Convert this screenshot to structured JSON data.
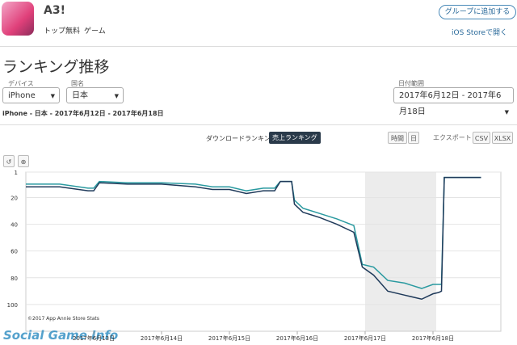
{
  "header": {
    "app_name": "A3!",
    "category_rank": "トップ無料",
    "genre": "ゲーム",
    "add_group": "グループに追加する",
    "open_store": "iOS Storeで開く"
  },
  "page_title": "ランキング推移",
  "filters": {
    "device_label": "デバイス",
    "device": "iPhone",
    "country_label": "国名",
    "country": "日本",
    "date_label": "日付範囲",
    "date_range": "2017年6月12日 - 2017年6月18日"
  },
  "summary": "iPhone - 日本 - 2017年6月12日 - 2017年6月18日",
  "tabs": [
    "ダウンロードランキング",
    "売上ランキング"
  ],
  "controls": {
    "hour": "時間",
    "day": "日",
    "export": "エクスポート",
    "csv": "CSV",
    "xlsx": "XLSX"
  },
  "watermark": "Social Game Info",
  "chart_data": {
    "type": "line",
    "credit": "©2017 App Annie Store Stats",
    "x": [
      0,
      12,
      22,
      24,
      26,
      36,
      48,
      60,
      66,
      72,
      78,
      84,
      88,
      90,
      94,
      95,
      98,
      104,
      110,
      116,
      119,
      123,
      128,
      134,
      140,
      144,
      146,
      147,
      148,
      161
    ],
    "series": [
      {
        "color": "#2a9aa0",
        "values": [
          10,
          10,
          13,
          13,
          8,
          9,
          9,
          10,
          12,
          12,
          15,
          13,
          13,
          8,
          8,
          22,
          28,
          32,
          36,
          41,
          70,
          72,
          82,
          84,
          88,
          85,
          85,
          85,
          5,
          5
        ]
      },
      {
        "color": "#1f3a5a",
        "values": [
          12,
          12,
          15,
          15,
          9,
          10,
          10,
          12,
          14,
          14,
          17,
          15,
          15,
          8,
          8,
          25,
          31,
          35,
          40,
          46,
          72,
          78,
          90,
          93,
          96,
          92,
          91,
          90,
          5,
          5
        ]
      }
    ],
    "xlim": [
      0,
      168
    ],
    "xticks": [
      {
        "value": 24,
        "label": "2017年6月13日"
      },
      {
        "value": 48,
        "label": "2017年6月14日"
      },
      {
        "value": 72,
        "label": "2017年6月15日"
      },
      {
        "value": 96,
        "label": "2017年6月16日"
      },
      {
        "value": 120,
        "label": "2017年6月17日"
      },
      {
        "value": 144,
        "label": "2017年6月18日"
      }
    ],
    "ylim": [
      1,
      120
    ],
    "y_inverted": true,
    "yticks": [
      1,
      20,
      40,
      60,
      80,
      100
    ],
    "grid": true
  }
}
